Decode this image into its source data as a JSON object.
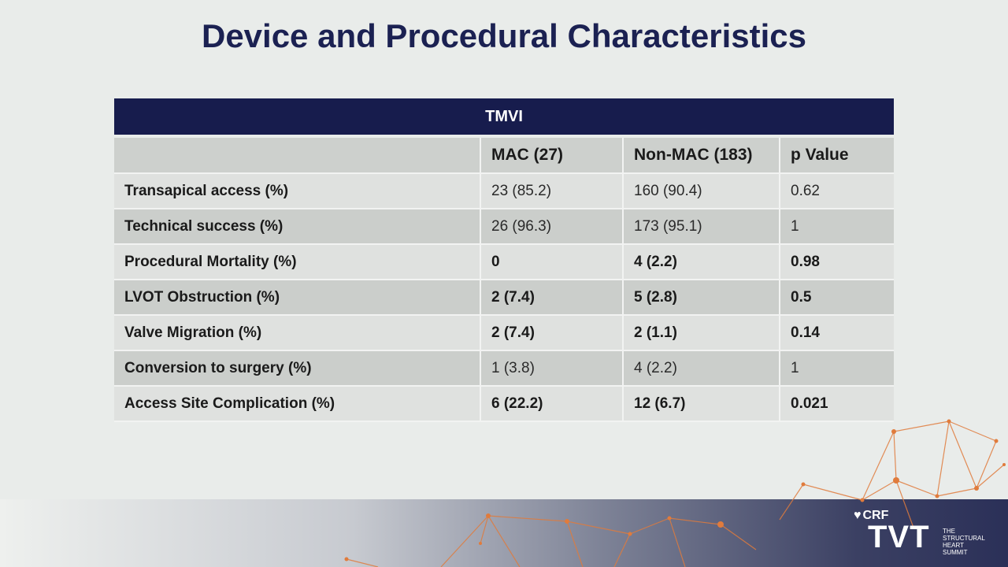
{
  "title": "Device and Procedural Characteristics",
  "table": {
    "group_header": "TMVI",
    "columns": [
      "",
      "MAC (27)",
      "Non-MAC (183)",
      "p Value"
    ],
    "rows": [
      {
        "label": "Transapical access (%)",
        "cells": [
          "23 (85.2)",
          "160 (90.4)",
          "0.62"
        ],
        "bold": false
      },
      {
        "label": "Technical success (%)",
        "cells": [
          "26 (96.3)",
          "173 (95.1)",
          "1"
        ],
        "bold": false
      },
      {
        "label": "Procedural Mortality (%)",
        "cells": [
          "0",
          "4 (2.2)",
          "0.98"
        ],
        "bold": true
      },
      {
        "label": "LVOT Obstruction (%)",
        "cells": [
          "2 (7.4)",
          "5 (2.8)",
          "0.5"
        ],
        "bold": true
      },
      {
        "label": "Valve Migration (%)",
        "cells": [
          "2 (7.4)",
          "2 (1.1)",
          "0.14"
        ],
        "bold": true
      },
      {
        "label": "Conversion to surgery (%)",
        "cells": [
          "1 (3.8)",
          "4 (2.2)",
          "1"
        ],
        "bold": false
      },
      {
        "label": "Access Site Complication (%)",
        "cells": [
          "6 (22.2)",
          "12 (6.7)",
          "0.021"
        ],
        "bold": true
      }
    ]
  },
  "logo": {
    "crf": "CRF",
    "tvt": "TVT",
    "tagline": [
      "THE",
      "STRUCTURAL",
      "HEART",
      "SUMMIT"
    ]
  },
  "colors": {
    "title": "#1b2152",
    "header_bg": "#171c4d",
    "network": "#e07b3c"
  }
}
